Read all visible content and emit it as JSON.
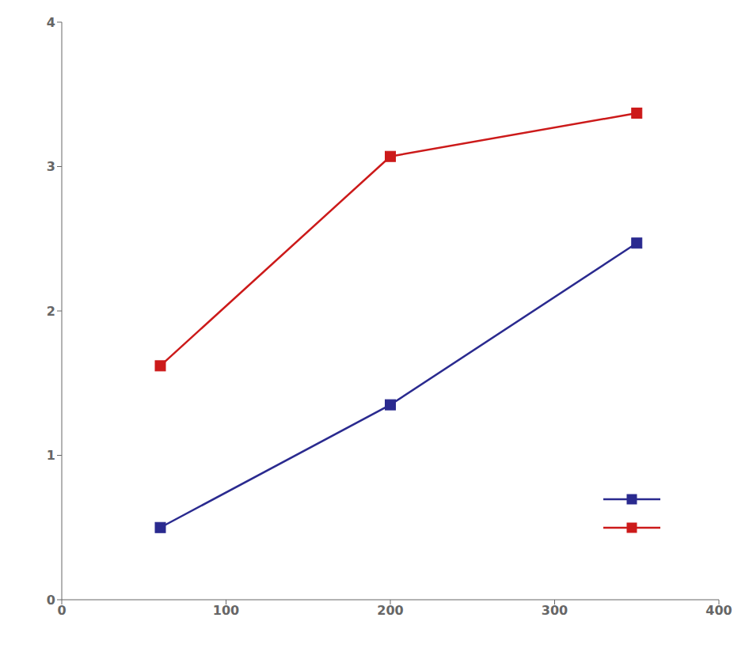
{
  "chart_data": {
    "type": "line",
    "x": [
      60,
      200,
      350
    ],
    "series": [
      {
        "color": "#2a2a8f",
        "values": [
          0.5,
          1.35,
          2.47
        ],
        "marker": "square"
      },
      {
        "color": "#cc1a1a",
        "values": [
          1.62,
          3.07,
          3.37
        ],
        "marker": "square"
      }
    ],
    "xlim": [
      0,
      400
    ],
    "ylim": [
      0,
      4
    ],
    "xticks": [
      0,
      100,
      200,
      300,
      400
    ],
    "yticks": [
      0,
      1,
      2,
      3,
      4
    ],
    "grid": false,
    "legend": "lower right"
  }
}
